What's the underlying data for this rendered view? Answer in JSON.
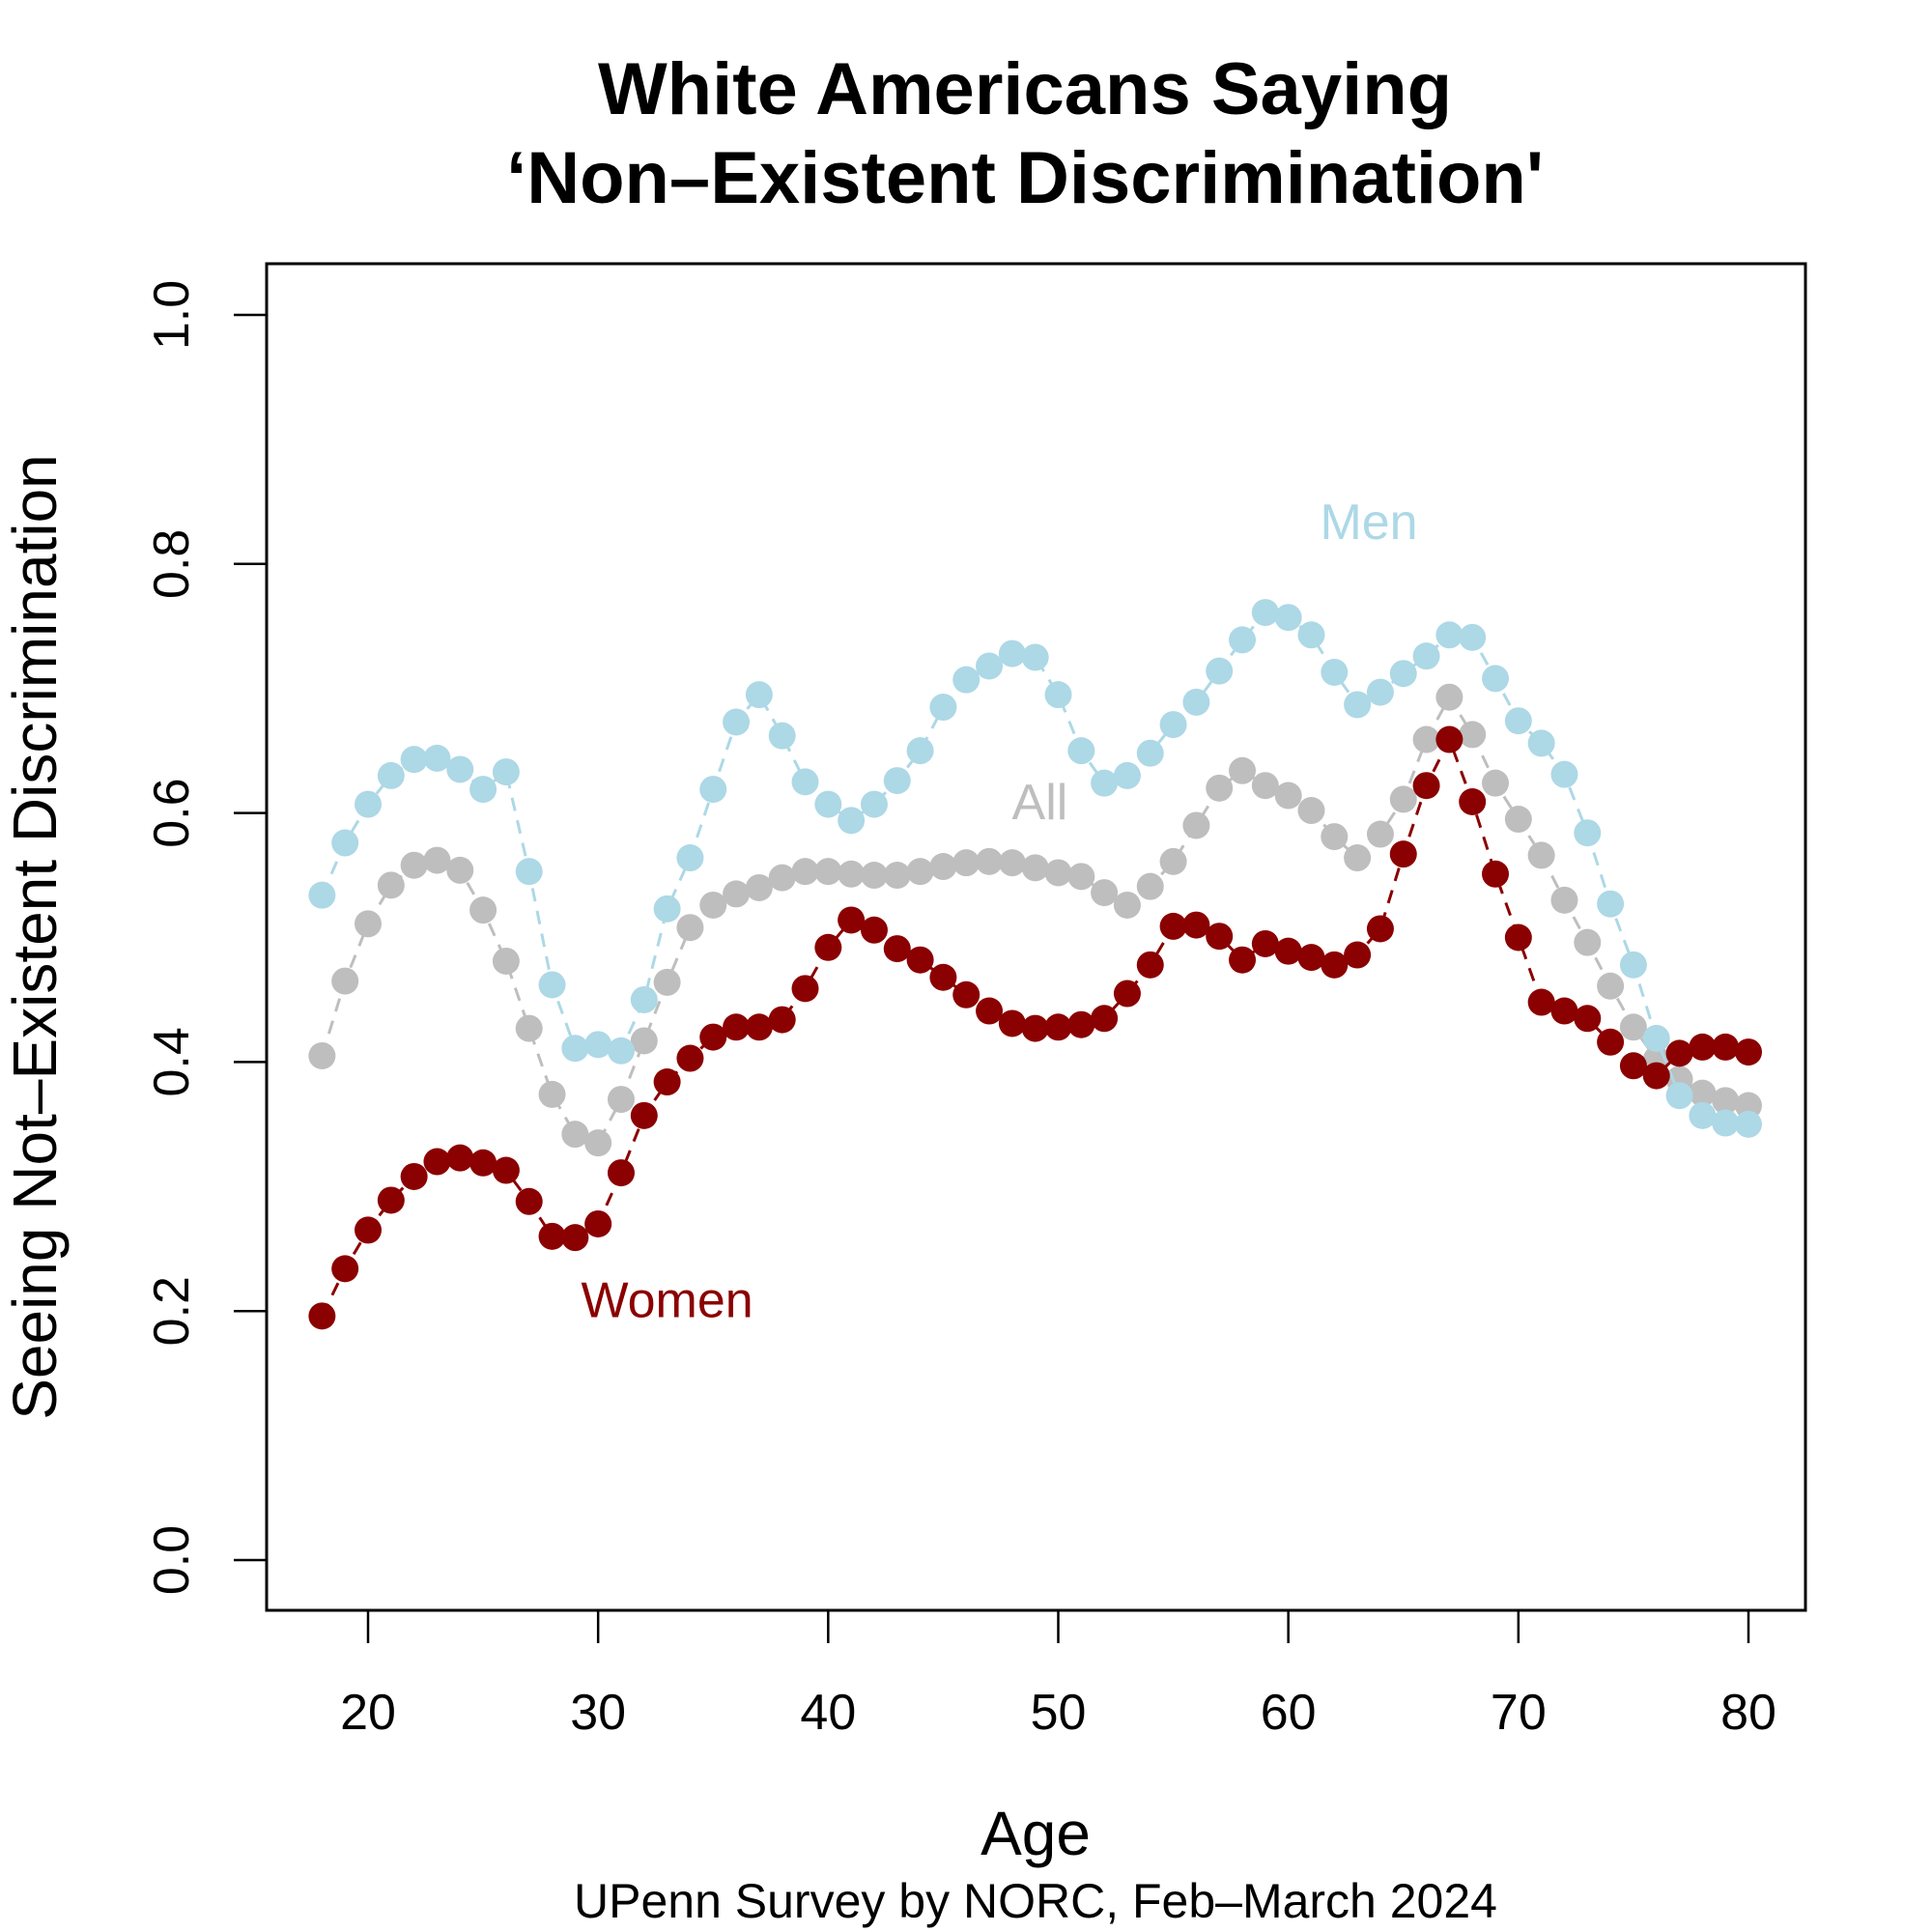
{
  "chart_data": {
    "type": "scatter",
    "title": [
      "White Americans Saying",
      "‘Non–Existent Discrimination'"
    ],
    "xlabel": "Age",
    "ylabel": "Seeing Not–Existent Discrimination",
    "caption": "UPenn Survey by NORC, Feb–March 2024",
    "xlim": [
      15.5,
      82.5
    ],
    "ylim": [
      -0.04,
      1.04
    ],
    "x_ticks": [
      20,
      30,
      40,
      50,
      60,
      70,
      80
    ],
    "x_tick_labels": [
      "20",
      "30",
      "40",
      "50",
      "60",
      "70",
      "80"
    ],
    "y_ticks": [
      0,
      0.2,
      0.4,
      0.6,
      0.8,
      1.0
    ],
    "y_tick_labels": [
      "0.0",
      "0.2",
      "0.4",
      "0.6",
      "0.8",
      "1.0"
    ],
    "x": [
      18,
      19,
      20,
      21,
      22,
      23,
      24,
      25,
      26,
      27,
      28,
      29,
      30,
      31,
      32,
      33,
      34,
      35,
      36,
      37,
      38,
      39,
      40,
      41,
      42,
      43,
      44,
      45,
      46,
      47,
      48,
      49,
      50,
      51,
      52,
      53,
      54,
      55,
      56,
      57,
      58,
      59,
      60,
      61,
      62,
      63,
      64,
      65,
      66,
      67,
      68,
      69,
      70,
      71,
      72,
      73,
      74,
      75,
      76,
      77,
      78,
      79,
      80
    ],
    "series": [
      {
        "name": "All",
        "label": "All",
        "color": "#bebebe",
        "values": [
          0.405,
          0.465,
          0.511,
          0.542,
          0.558,
          0.562,
          0.554,
          0.522,
          0.481,
          0.427,
          0.374,
          0.342,
          0.335,
          0.37,
          0.417,
          0.464,
          0.508,
          0.526,
          0.535,
          0.54,
          0.548,
          0.553,
          0.553,
          0.551,
          0.55,
          0.55,
          0.553,
          0.557,
          0.56,
          0.561,
          0.56,
          0.556,
          0.552,
          0.549,
          0.536,
          0.526,
          0.541,
          0.561,
          0.59,
          0.62,
          0.634,
          0.622,
          0.614,
          0.602,
          0.581,
          0.564,
          0.583,
          0.611,
          0.659,
          0.693,
          0.663,
          0.624,
          0.595,
          0.566,
          0.53,
          0.496,
          0.461,
          0.428,
          0.402,
          0.386,
          0.375,
          0.369,
          0.365
        ]
      },
      {
        "name": "Men",
        "label": "Men",
        "color": "#add8e6",
        "values": [
          0.534,
          0.576,
          0.607,
          0.63,
          0.643,
          0.644,
          0.635,
          0.619,
          0.633,
          0.553,
          0.462,
          0.411,
          0.414,
          0.409,
          0.45,
          0.523,
          0.564,
          0.619,
          0.673,
          0.695,
          0.662,
          0.625,
          0.607,
          0.594,
          0.607,
          0.626,
          0.65,
          0.685,
          0.707,
          0.718,
          0.728,
          0.725,
          0.695,
          0.65,
          0.624,
          0.63,
          0.648,
          0.671,
          0.689,
          0.714,
          0.739,
          0.761,
          0.757,
          0.743,
          0.713,
          0.687,
          0.697,
          0.712,
          0.726,
          0.743,
          0.741,
          0.708,
          0.674,
          0.656,
          0.631,
          0.584,
          0.527,
          0.478,
          0.419,
          0.373,
          0.357,
          0.351,
          0.35
        ]
      },
      {
        "name": "Women",
        "label": "Women",
        "color": "#8b0000",
        "values": [
          0.196,
          0.234,
          0.265,
          0.289,
          0.308,
          0.32,
          0.323,
          0.319,
          0.313,
          0.288,
          0.26,
          0.259,
          0.27,
          0.311,
          0.357,
          0.384,
          0.403,
          0.42,
          0.428,
          0.428,
          0.434,
          0.459,
          0.492,
          0.514,
          0.506,
          0.491,
          0.482,
          0.468,
          0.454,
          0.441,
          0.431,
          0.427,
          0.428,
          0.43,
          0.435,
          0.455,
          0.478,
          0.509,
          0.51,
          0.501,
          0.482,
          0.495,
          0.489,
          0.484,
          0.478,
          0.486,
          0.507,
          0.567,
          0.622,
          0.659,
          0.609,
          0.551,
          0.5,
          0.448,
          0.441,
          0.435,
          0.416,
          0.397,
          0.389,
          0.407,
          0.412,
          0.412,
          0.408
        ]
      }
    ],
    "annotations": [
      {
        "text": "Men",
        "x": 63.5,
        "y": 0.82
      },
      {
        "text": "All",
        "x": 49.2,
        "y": 0.595
      },
      {
        "text": "Women",
        "x": 33.0,
        "y": 0.195
      }
    ],
    "grid": false,
    "legend": "none"
  }
}
